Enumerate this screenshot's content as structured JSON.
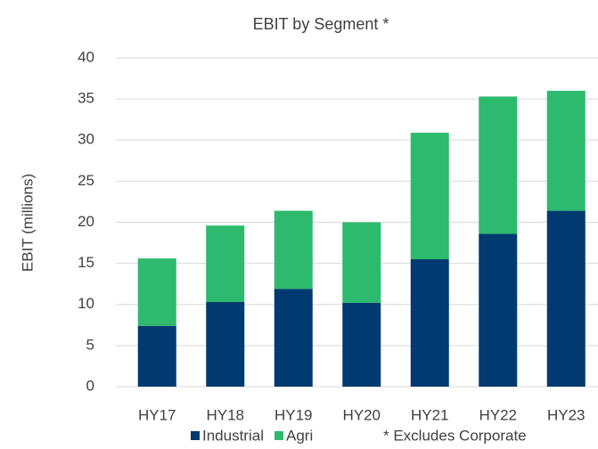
{
  "chart_data": {
    "type": "stacked_bar",
    "title": "EBIT by Segment *",
    "y_label": "EBIT (millions)",
    "annotation": "* Excludes Corporate",
    "categories": [
      "HY17",
      "HY18",
      "HY19",
      "HY20",
      "HY21",
      "HY22",
      "HY23"
    ],
    "series": [
      {
        "name": "Industrial",
        "color": "#003a70",
        "values": [
          7.4,
          10.3,
          11.9,
          10.2,
          15.5,
          18.6,
          21.4
        ]
      },
      {
        "name": "Agri",
        "color": "#2dba6e",
        "values": [
          8.2,
          9.3,
          9.5,
          9.8,
          15.4,
          16.7,
          14.6
        ]
      }
    ],
    "ylim": [
      0,
      40
    ],
    "yticks": [
      0,
      5,
      10,
      15,
      20,
      25,
      30,
      35,
      40
    ],
    "grid": true,
    "legend": "bottom"
  }
}
